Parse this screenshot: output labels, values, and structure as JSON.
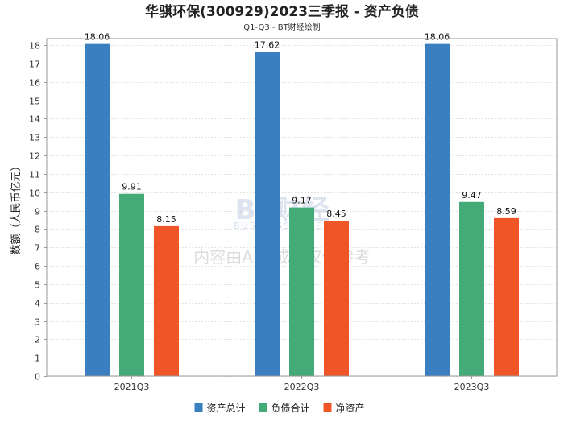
{
  "chart_data": {
    "type": "bar",
    "title": "华骐环保(300929)2023三季报 - 资产负债",
    "subtitle": "Q1-Q3 - BT财经绘制",
    "xlabel": "",
    "ylabel": "数额（人民币亿元）",
    "categories": [
      "2021Q3",
      "2022Q3",
      "2023Q3"
    ],
    "ylim": [
      0,
      18
    ],
    "yticks": [
      0,
      1,
      2,
      3,
      4,
      5,
      6,
      7,
      8,
      9,
      10,
      11,
      12,
      13,
      14,
      15,
      16,
      17,
      18
    ],
    "grid": true,
    "legend_position": "bottom",
    "series": [
      {
        "name": "资产总计",
        "color": "#3a80c0",
        "values": [
          18.06,
          17.62,
          18.06
        ]
      },
      {
        "name": "负债合计",
        "color": "#44aa78",
        "values": [
          9.91,
          9.17,
          9.47
        ]
      },
      {
        "name": "净资产",
        "color": "#f05528",
        "values": [
          8.15,
          8.45,
          8.59
        ]
      }
    ]
  },
  "watermark": {
    "brand": "BT财经",
    "brand_sub": "BUSINESS TIMES",
    "note": "内容由AI生成，仅供参考"
  }
}
